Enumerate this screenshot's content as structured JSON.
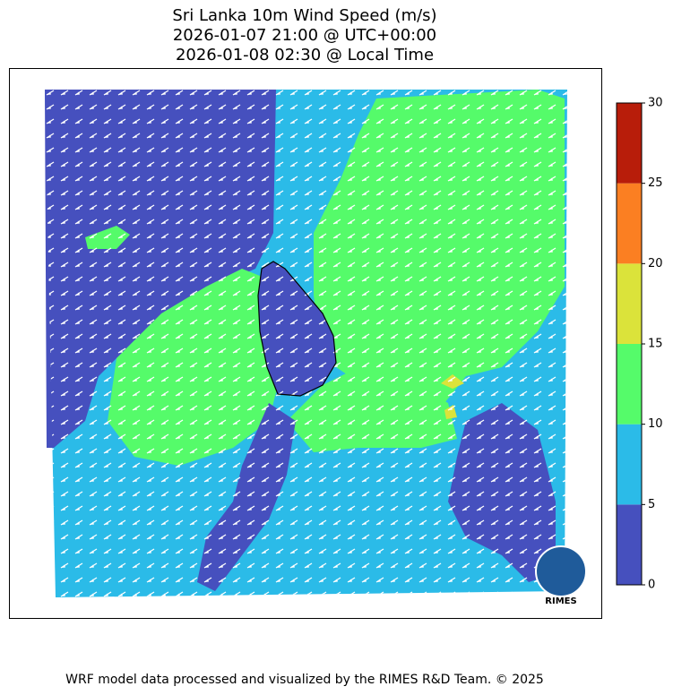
{
  "chart_data": {
    "type": "filled-contour",
    "title": [
      "Sri Lanka 10m Wind Speed (m/s)",
      "2026-01-07 21:00 @ UTC+00:00",
      "2026-01-08 02:30 @ Local Time"
    ],
    "colorbar": {
      "levels": [
        0,
        5,
        10,
        15,
        20,
        25,
        30
      ],
      "colors": [
        "#4650be",
        "#2bbbe8",
        "#55fb6a",
        "#dbe33a",
        "#fb7f22",
        "#b81d0a"
      ]
    }
  },
  "footer": "WRF model data processed and visualized by the RIMES R&D Team. © 2025",
  "logo": "RIMES"
}
